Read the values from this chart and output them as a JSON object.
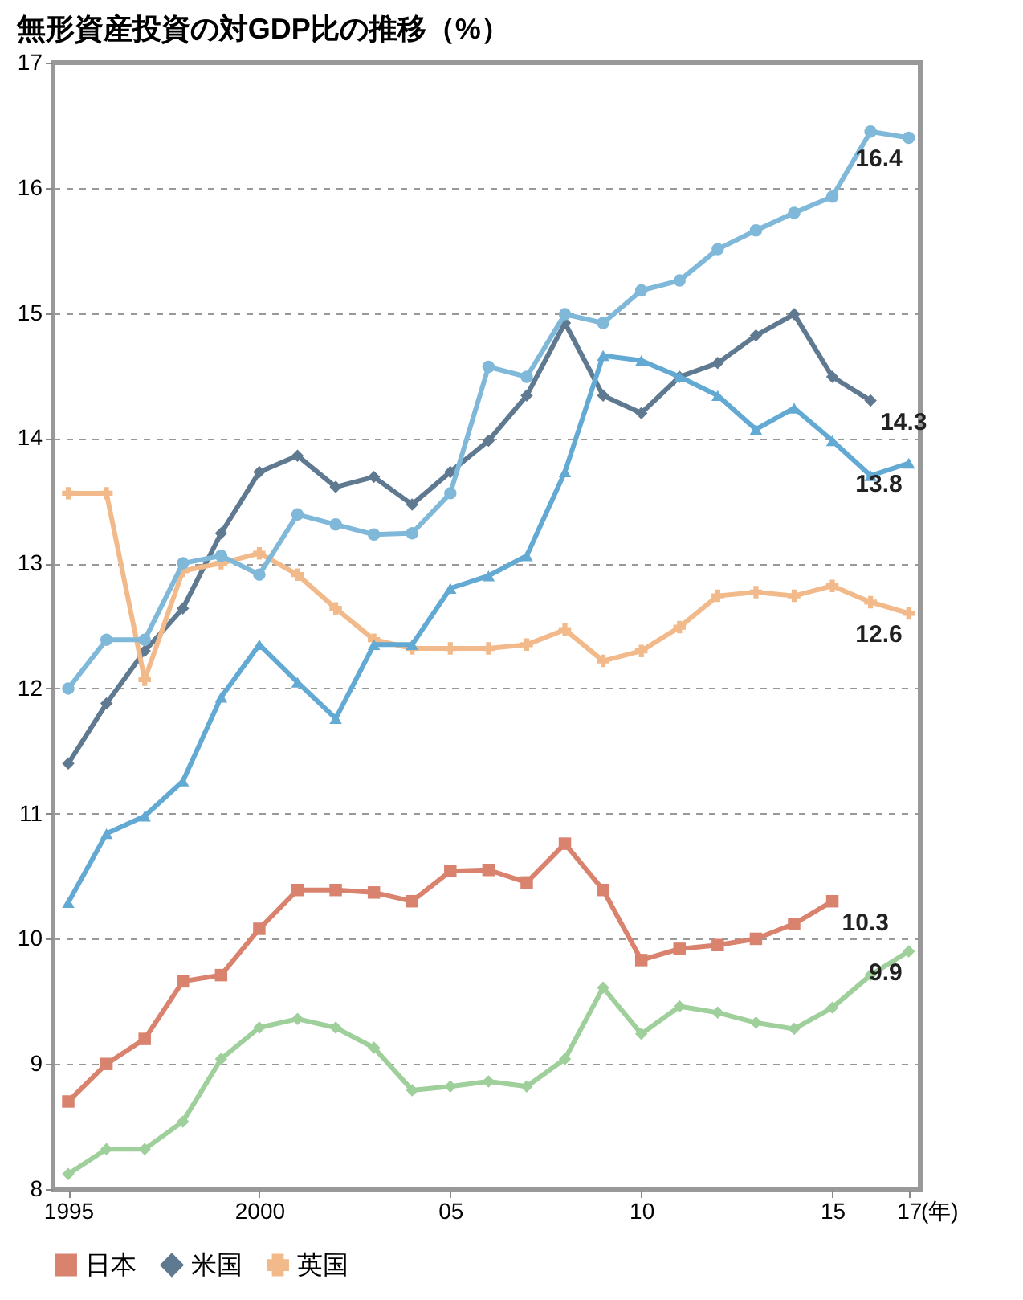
{
  "chart_data": {
    "type": "line",
    "title": "無形資産投資の対GDP比の推移（%）",
    "x": [
      1995,
      1996,
      1997,
      1998,
      1999,
      2000,
      2001,
      2002,
      2003,
      2004,
      2005,
      2006,
      2007,
      2008,
      2009,
      2010,
      2011,
      2012,
      2013,
      2014,
      2015,
      2016,
      2017
    ],
    "xlim": [
      1994.6,
      2017.3
    ],
    "xticks": [
      {
        "value": 1995,
        "label": "1995"
      },
      {
        "value": 2000,
        "label": "2000"
      },
      {
        "value": 2005,
        "label": "05"
      },
      {
        "value": 2010,
        "label": "10"
      },
      {
        "value": 2015,
        "label": "15"
      },
      {
        "value": 2017,
        "label": "17"
      }
    ],
    "xlabel": "(年)",
    "ylim": [
      8,
      17
    ],
    "yticks": [
      8,
      9,
      10,
      11,
      12,
      13,
      14,
      15,
      16,
      17
    ],
    "grid": "y",
    "line_style": "solid",
    "legend": "bottom",
    "series": [
      {
        "name": "日本",
        "color": "#d9826e",
        "marker": "square",
        "values": [
          8.7,
          9.0,
          9.2,
          9.66,
          9.71,
          10.08,
          10.39,
          10.39,
          10.37,
          10.3,
          10.54,
          10.55,
          10.45,
          10.76,
          10.39,
          9.83,
          9.92,
          9.95,
          10.0,
          10.12,
          10.3,
          null,
          null
        ]
      },
      {
        "name": "米国",
        "color": "#5f7a90",
        "marker": "diamond",
        "values": [
          11.4,
          11.88,
          12.3,
          12.64,
          13.24,
          13.73,
          13.86,
          13.61,
          13.69,
          13.47,
          13.73,
          13.98,
          14.34,
          14.92,
          14.34,
          14.2,
          14.49,
          14.6,
          14.82,
          14.99,
          14.49,
          14.3,
          null
        ]
      },
      {
        "name": "英国",
        "color": "#f2b98a",
        "marker": "cross",
        "values": [
          13.56,
          13.56,
          12.07,
          12.94,
          13.0,
          13.08,
          12.91,
          12.64,
          12.39,
          12.32,
          12.32,
          12.32,
          12.35,
          12.47,
          12.22,
          12.3,
          12.49,
          12.74,
          12.77,
          12.74,
          12.82,
          12.69,
          12.6
        ]
      },
      {
        "color": "#7fb8d9",
        "marker": "circle",
        "values": [
          12.0,
          12.39,
          12.39,
          13.0,
          13.06,
          12.91,
          13.39,
          13.31,
          13.23,
          13.24,
          13.56,
          14.57,
          14.49,
          14.99,
          14.92,
          15.18,
          15.26,
          15.51,
          15.66,
          15.8,
          15.93,
          16.45,
          16.4
        ]
      },
      {
        "color": "#62a9d4",
        "marker": "triangle",
        "values": [
          10.29,
          10.84,
          10.98,
          11.26,
          11.93,
          12.35,
          12.05,
          11.76,
          12.35,
          12.35,
          12.8,
          12.9,
          13.06,
          13.73,
          14.66,
          14.62,
          14.49,
          14.34,
          14.07,
          14.24,
          13.98,
          13.7,
          13.8
        ]
      },
      {
        "color": "#9fcf9a",
        "marker": "diamond",
        "values": [
          8.12,
          8.32,
          8.32,
          8.54,
          9.04,
          9.29,
          9.36,
          9.29,
          9.13,
          8.79,
          8.82,
          8.86,
          8.82,
          9.04,
          9.61,
          9.24,
          9.46,
          9.41,
          9.33,
          9.28,
          9.45,
          9.71,
          9.9
        ]
      }
    ],
    "annotations": [
      {
        "text": "16.4",
        "x": 2017,
        "y": 16.4
      },
      {
        "text": "14.3",
        "x": 2016,
        "y": 14.3
      },
      {
        "text": "13.8",
        "x": 2017,
        "y": 13.8
      },
      {
        "text": "12.6",
        "x": 2017,
        "y": 12.6
      },
      {
        "text": "10.3",
        "x": 2015,
        "y": 10.3
      },
      {
        "text": "9.9",
        "x": 2017,
        "y": 9.9
      }
    ]
  }
}
